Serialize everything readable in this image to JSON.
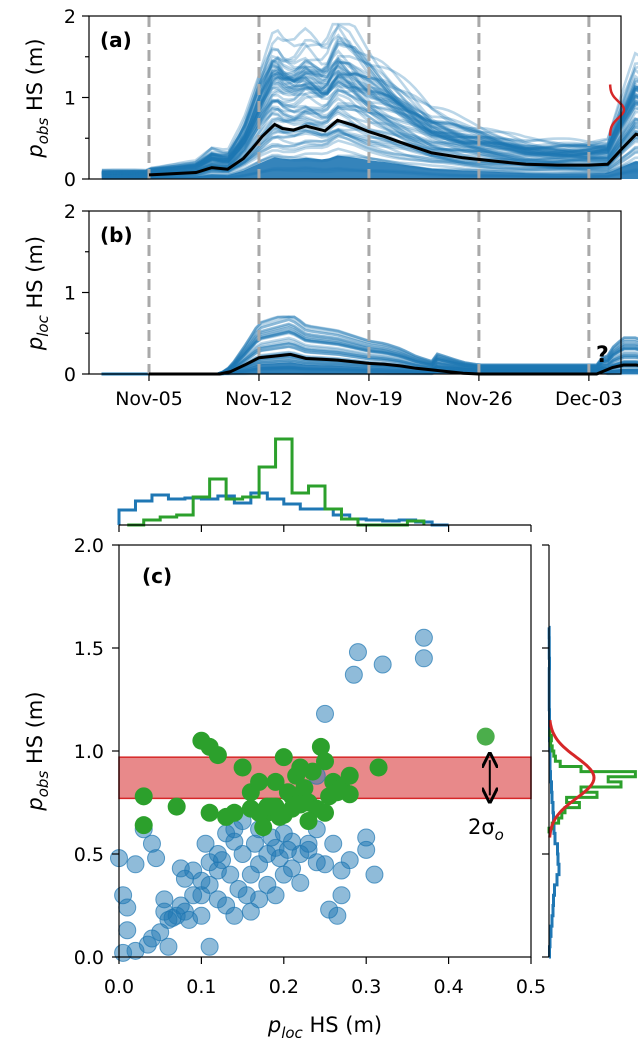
{
  "panel_a": {
    "label": "(a)",
    "ylabel_sym": "p",
    "ylabel_sub": "obs",
    "ylabel_rest": " HS (m)",
    "yticks": [
      "0",
      "1",
      "2"
    ],
    "qmark": ""
  },
  "panel_b": {
    "label": "(b)",
    "ylabel_sym": "p",
    "ylabel_sub": "loc",
    "ylabel_rest": " HS (m)",
    "yticks": [
      "0",
      "1",
      "2"
    ],
    "qmark": "?"
  },
  "date_ticks": [
    "Nov-05",
    "Nov-12",
    "Nov-19",
    "Nov-26",
    "Dec-03"
  ],
  "panel_c": {
    "label": "(c)",
    "xlabel_sym": "p",
    "xlabel_sub": "loc",
    "xlabel_rest": " HS (m)",
    "ylabel_sym": "p",
    "ylabel_sub": "obs",
    "ylabel_rest": " HS (m)",
    "xticks": [
      "0.0",
      "0.1",
      "0.2",
      "0.3",
      "0.4",
      "0.5"
    ],
    "yticks": [
      "0.0",
      "0.5",
      "1.0",
      "1.5",
      "2.0"
    ],
    "sigma_label_pre": "2σ",
    "sigma_label_sub": "o"
  },
  "colors": {
    "ensemble": "#1f77b4",
    "mean": "#000000",
    "posterior": "#2ca02c",
    "observation": "#d62728",
    "obs_band": "#e8898a",
    "gridline": "#a9a9a9"
  },
  "chart_data": [
    {
      "type": "line",
      "title": "(a)",
      "ylabel": "p_obs HS (m)",
      "x_ticks": [
        "Nov-05",
        "Nov-12",
        "Nov-19",
        "Nov-26",
        "Dec-03"
      ],
      "x_range_days": [
        -3,
        33
      ],
      "ylim": [
        0,
        2
      ],
      "series": [
        {
          "name": "ensemble mean",
          "x_days": [
            0,
            1,
            3,
            4,
            5,
            6,
            6.6,
            7.2,
            8,
            8.5,
            9.2,
            10,
            11.2,
            12,
            13,
            14,
            15,
            16,
            18,
            20,
            22,
            24,
            26,
            28,
            29.2,
            30,
            31,
            32.2
          ],
          "values": [
            0.05,
            0.06,
            0.08,
            0.14,
            0.12,
            0.25,
            0.38,
            0.52,
            0.67,
            0.62,
            0.6,
            0.65,
            0.59,
            0.72,
            0.66,
            0.58,
            0.52,
            0.45,
            0.32,
            0.26,
            0.22,
            0.18,
            0.17,
            0.17,
            0.18,
            0.35,
            0.55,
            0.48
          ]
        }
      ],
      "ensemble_envelope_max": [
        0.1,
        0.12,
        0.15,
        0.22,
        0.35,
        0.5,
        1.2,
        1.88,
        1.6,
        1.45,
        1.85,
        1.7,
        1.55,
        1.35,
        1.2,
        1.1,
        1.0,
        0.95,
        0.88,
        0.85,
        0.85,
        0.85,
        0.9,
        1.75,
        1.5
      ],
      "observation": {
        "day": 32.2,
        "value": 0.85,
        "marker": "star",
        "sigma": 0.1
      }
    },
    {
      "type": "line",
      "title": "(b)",
      "ylabel": "p_loc HS (m)",
      "x_ticks": [
        "Nov-05",
        "Nov-12",
        "Nov-19",
        "Nov-26",
        "Dec-03"
      ],
      "x_range_days": [
        -3,
        33
      ],
      "ylim": [
        0,
        2
      ],
      "series": [
        {
          "name": "ensemble mean",
          "x_days": [
            0,
            3,
            4.5,
            5.2,
            6.2,
            7,
            8,
            9,
            10,
            11,
            12,
            13,
            14,
            15,
            16,
            17,
            18,
            19,
            20,
            21,
            22,
            23,
            24,
            25,
            26,
            27,
            28,
            28.5,
            29,
            29.5,
            30.2,
            31,
            31.5,
            32.2
          ],
          "values": [
            0.0,
            0.0,
            0.0,
            0.03,
            0.12,
            0.2,
            0.22,
            0.24,
            0.19,
            0.18,
            0.17,
            0.15,
            0.13,
            0.12,
            0.1,
            0.07,
            0.05,
            0.03,
            0.01,
            0.0,
            0.0,
            0.0,
            0.0,
            0.0,
            0.0,
            0.0,
            0.0,
            0.0,
            0.04,
            0.08,
            0.11,
            0.11,
            0.1,
            0.12
          ]
        }
      ],
      "ensemble_envelope_max": [
        0.0,
        0.0,
        0.45,
        0.67,
        0.55,
        0.5,
        0.45,
        0.43,
        0.42,
        0.4,
        0.38,
        0.37,
        0.35,
        0.35,
        0.35,
        0.35,
        0.35,
        0.35,
        0.42,
        0.4
      ]
    },
    {
      "type": "scatter",
      "title": "(c)",
      "xlabel": "p_loc HS (m)",
      "ylabel": "p_obs HS (m)",
      "xlim": [
        0,
        0.5
      ],
      "ylim": [
        0,
        2
      ],
      "observation_band": {
        "center": 0.87,
        "sigma": 0.1,
        "x_extent": [
          0,
          0.5
        ]
      },
      "series": [
        {
          "name": "prior",
          "points": [
            [
              0.005,
              0.02
            ],
            [
              0.02,
              0.03
            ],
            [
              0.0,
              0.48
            ],
            [
              0.005,
              0.3
            ],
            [
              0.01,
              0.24
            ],
            [
              0.01,
              0.13
            ],
            [
              0.035,
              0.06
            ],
            [
              0.04,
              0.09
            ],
            [
              0.05,
              0.12
            ],
            [
              0.055,
              0.22
            ],
            [
              0.06,
              0.18
            ],
            [
              0.065,
              0.19
            ],
            [
              0.06,
              0.05
            ],
            [
              0.07,
              0.2
            ],
            [
              0.075,
              0.25
            ],
            [
              0.08,
              0.22
            ],
            [
              0.085,
              0.18
            ],
            [
              0.09,
              0.3
            ],
            [
              0.1,
              0.3
            ],
            [
              0.09,
              0.42
            ],
            [
              0.1,
              0.37
            ],
            [
              0.11,
              0.46
            ],
            [
              0.105,
              0.55
            ],
            [
              0.12,
              0.5
            ],
            [
              0.13,
              0.6
            ],
            [
              0.14,
              0.56
            ],
            [
              0.15,
              0.5
            ],
            [
              0.16,
              0.4
            ],
            [
              0.17,
              0.45
            ],
            [
              0.18,
              0.5
            ],
            [
              0.19,
              0.53
            ],
            [
              0.2,
              0.6
            ],
            [
              0.21,
              0.56
            ],
            [
              0.22,
              0.5
            ],
            [
              0.23,
              0.55
            ],
            [
              0.25,
              0.45
            ],
            [
              0.27,
              0.3
            ],
            [
              0.28,
              0.47
            ],
            [
              0.3,
              0.52
            ],
            [
              0.31,
              0.4
            ],
            [
              0.02,
              0.45
            ],
            [
              0.04,
              0.55
            ],
            [
              0.03,
              0.62
            ],
            [
              0.045,
              0.48
            ],
            [
              0.075,
              0.43
            ],
            [
              0.08,
              0.38
            ],
            [
              0.12,
              0.28
            ],
            [
              0.13,
              0.25
            ],
            [
              0.14,
              0.2
            ],
            [
              0.155,
              0.3
            ],
            [
              0.16,
              0.22
            ],
            [
              0.17,
              0.28
            ],
            [
              0.18,
              0.35
            ],
            [
              0.19,
              0.3
            ],
            [
              0.2,
              0.4
            ],
            [
              0.21,
              0.43
            ],
            [
              0.22,
              0.36
            ],
            [
              0.24,
              0.46
            ],
            [
              0.255,
              0.23
            ],
            [
              0.265,
              0.2
            ],
            [
              0.285,
              1.37
            ],
            [
              0.29,
              1.48
            ],
            [
              0.32,
              1.42
            ],
            [
              0.37,
              1.55
            ],
            [
              0.37,
              1.45
            ],
            [
              0.25,
              1.18
            ],
            [
              0.24,
              0.88
            ],
            [
              0.14,
              0.62
            ],
            [
              0.15,
              0.66
            ],
            [
              0.17,
              0.62
            ],
            [
              0.11,
              0.05
            ],
            [
              0.055,
              0.28
            ],
            [
              0.1,
              0.2
            ],
            [
              0.11,
              0.35
            ],
            [
              0.12,
              0.42
            ],
            [
              0.125,
              0.47
            ],
            [
              0.135,
              0.4
            ],
            [
              0.145,
              0.33
            ],
            [
              0.165,
              0.55
            ],
            [
              0.185,
              0.58
            ],
            [
              0.195,
              0.48
            ],
            [
              0.205,
              0.52
            ],
            [
              0.23,
              0.52
            ],
            [
              0.24,
              0.62
            ],
            [
              0.26,
              0.55
            ],
            [
              0.27,
              0.42
            ],
            [
              0.3,
              0.58
            ]
          ]
        },
        {
          "name": "posterior",
          "points": [
            [
              0.1,
              1.05
            ],
            [
              0.11,
              1.02
            ],
            [
              0.12,
              0.98
            ],
            [
              0.15,
              0.92
            ],
            [
              0.16,
              0.8
            ],
            [
              0.17,
              0.85
            ],
            [
              0.18,
              0.73
            ],
            [
              0.19,
              0.85
            ],
            [
              0.2,
              0.97
            ],
            [
              0.205,
              0.8
            ],
            [
              0.21,
              0.72
            ],
            [
              0.215,
              0.88
            ],
            [
              0.22,
              0.92
            ],
            [
              0.225,
              0.82
            ],
            [
              0.23,
              0.75
            ],
            [
              0.235,
              0.9
            ],
            [
              0.245,
              1.02
            ],
            [
              0.25,
              0.95
            ],
            [
              0.255,
              0.78
            ],
            [
              0.26,
              0.85
            ],
            [
              0.265,
              0.8
            ],
            [
              0.27,
              0.82
            ],
            [
              0.28,
              0.88
            ],
            [
              0.21,
              0.78
            ],
            [
              0.22,
              0.74
            ],
            [
              0.24,
              0.72
            ],
            [
              0.18,
              0.7
            ],
            [
              0.14,
              0.7
            ],
            [
              0.16,
              0.72
            ],
            [
              0.17,
              0.7
            ],
            [
              0.13,
              0.68
            ],
            [
              0.11,
              0.7
            ],
            [
              0.07,
              0.73
            ],
            [
              0.03,
              0.78
            ],
            [
              0.03,
              0.64
            ],
            [
              0.19,
              0.73
            ],
            [
              0.2,
              0.69
            ],
            [
              0.23,
              0.66
            ],
            [
              0.25,
              0.7
            ],
            [
              0.28,
              0.79
            ],
            [
              0.315,
              0.92
            ],
            [
              0.445,
              1.07
            ],
            [
              0.185,
              0.73
            ],
            [
              0.215,
              0.74
            ],
            [
              0.175,
              0.63
            ],
            [
              0.195,
              0.68
            ]
          ]
        }
      ]
    }
  ]
}
